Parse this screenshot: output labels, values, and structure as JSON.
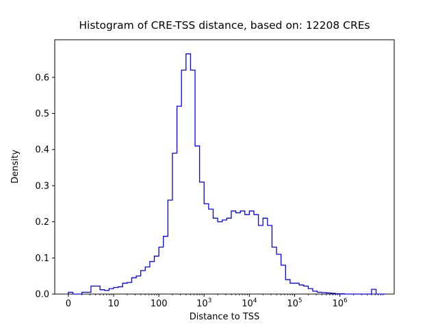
{
  "figure": {
    "background_color": "#ffffff",
    "line_color": "#0000ff",
    "axis_color": "#000000"
  },
  "chart_data": {
    "type": "line",
    "subtype": "histogram-step",
    "title": "Histogram of CRE-TSS distance, based on: 12208 CREs",
    "xlabel": "Distance to TSS",
    "ylabel": "Density",
    "x_scale": "log",
    "xlim_log10": [
      -0.3,
      7.2
    ],
    "ylim": [
      0,
      0.704
    ],
    "x_ticks": [
      {
        "label": "0",
        "exp": "",
        "log10": 0
      },
      {
        "label": "10",
        "exp": "",
        "log10": 1
      },
      {
        "label": "100",
        "exp": "",
        "log10": 2
      },
      {
        "label": "10",
        "exp": "3",
        "log10": 3
      },
      {
        "label": "10",
        "exp": "4",
        "log10": 4
      },
      {
        "label": "10",
        "exp": "5",
        "log10": 5
      },
      {
        "label": "10",
        "exp": "6",
        "log10": 6
      }
    ],
    "minor_ticks": true,
    "y_ticks": [
      {
        "label": "0.0",
        "value": 0.0
      },
      {
        "label": "0.1",
        "value": 0.1
      },
      {
        "label": "0.2",
        "value": 0.2
      },
      {
        "label": "0.3",
        "value": 0.3
      },
      {
        "label": "0.4",
        "value": 0.4
      },
      {
        "label": "0.5",
        "value": 0.5
      },
      {
        "label": "0.6",
        "value": 0.6
      }
    ],
    "bin_edges_log10": [
      0.0,
      0.1,
      0.2,
      0.3,
      0.4,
      0.5,
      0.6,
      0.7,
      0.8,
      0.9,
      1.0,
      1.1,
      1.2,
      1.3,
      1.4,
      1.5,
      1.6,
      1.7,
      1.8,
      1.9,
      2.0,
      2.1,
      2.2,
      2.3,
      2.4,
      2.5,
      2.6,
      2.7,
      2.8,
      2.9,
      3.0,
      3.1,
      3.2,
      3.3,
      3.4,
      3.5,
      3.6,
      3.7,
      3.8,
      3.9,
      4.0,
      4.1,
      4.2,
      4.3,
      4.4,
      4.5,
      4.6,
      4.7,
      4.8,
      4.9,
      5.0,
      5.1,
      5.2,
      5.3,
      5.4,
      5.5,
      5.6,
      5.7,
      5.8,
      5.9,
      6.0,
      6.1,
      6.2,
      6.3,
      6.4,
      6.5,
      6.6,
      6.7,
      6.8,
      6.9,
      7.0
    ],
    "densities": [
      0.005,
      0.0,
      0.0,
      0.005,
      0.005,
      0.022,
      0.022,
      0.012,
      0.01,
      0.015,
      0.018,
      0.02,
      0.03,
      0.032,
      0.045,
      0.05,
      0.065,
      0.075,
      0.09,
      0.105,
      0.13,
      0.16,
      0.26,
      0.39,
      0.52,
      0.62,
      0.665,
      0.62,
      0.41,
      0.31,
      0.25,
      0.235,
      0.21,
      0.2,
      0.205,
      0.21,
      0.23,
      0.225,
      0.23,
      0.22,
      0.23,
      0.22,
      0.19,
      0.21,
      0.19,
      0.13,
      0.11,
      0.08,
      0.04,
      0.03,
      0.03,
      0.025,
      0.022,
      0.015,
      0.008,
      0.005,
      0.004,
      0.003,
      0.002,
      0.001,
      0.001,
      0.0,
      0.0,
      0.0,
      0.0,
      0.0,
      0.0,
      0.013,
      0.0,
      0.0
    ]
  }
}
